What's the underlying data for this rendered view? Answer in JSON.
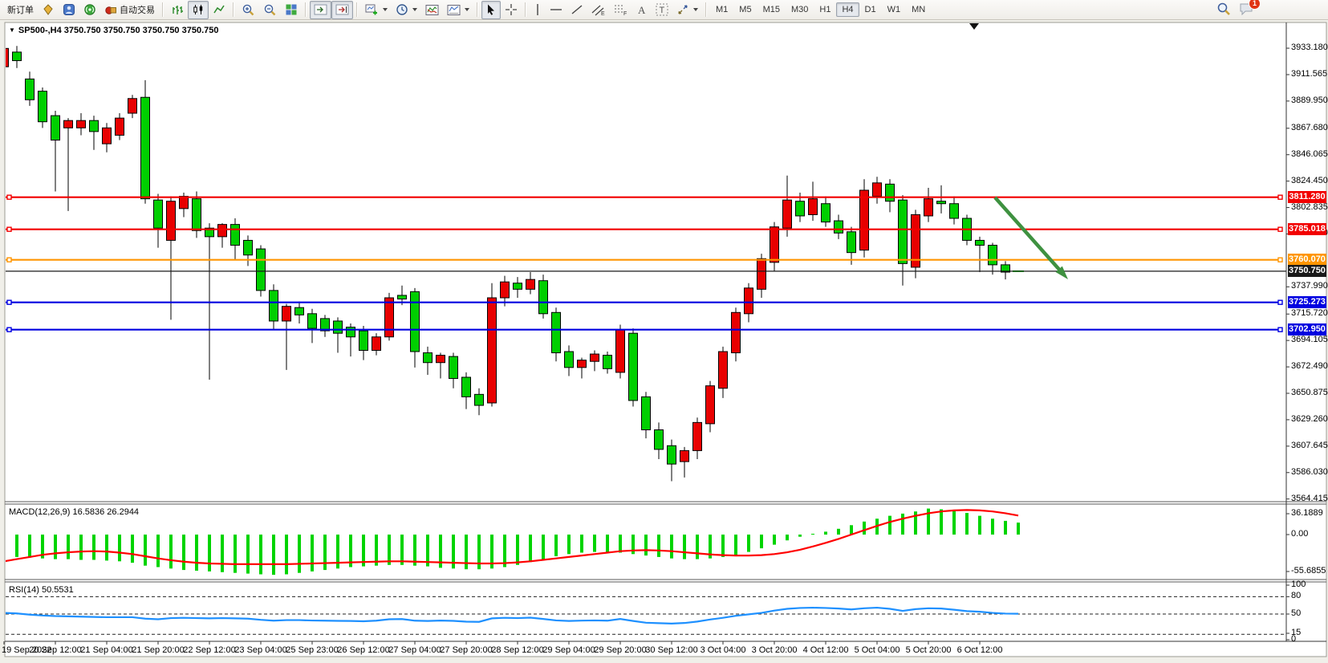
{
  "toolbar": {
    "new_order_label": "新订单",
    "auto_trading_label": "自动交易",
    "timeframes": [
      "M1",
      "M5",
      "M15",
      "M30",
      "H1",
      "H4",
      "D1",
      "W1",
      "MN"
    ],
    "active_timeframe": "H4",
    "notification_count": "1"
  },
  "chart": {
    "symbol_period": "SP500-,H4",
    "ohlc_display": "3750.750 3750.750 3750.750 3750.750",
    "current_price": "3750.750",
    "price_axis_labels": [
      "3933.180",
      "3911.565",
      "3889.950",
      "3867.680",
      "3846.065",
      "3824.450",
      "3802.835",
      "3781.220",
      "3737.990",
      "3715.720",
      "3694.105",
      "3672.490",
      "3650.875",
      "3629.260",
      "3607.645",
      "3586.030",
      "3564.415"
    ],
    "hlines": [
      {
        "label": "3811.280",
        "price": 3811.28,
        "color": "#f20000",
        "role": "resistance-line"
      },
      {
        "label": "3785.018",
        "price": 3785.018,
        "color": "#f20000",
        "role": "resistance-line"
      },
      {
        "label": "3760.070",
        "price": 3760.07,
        "color": "#ff9500",
        "role": "pivot-line"
      },
      {
        "label": "3750.750",
        "price": 3750.75,
        "color": "#1a1a1a",
        "role": "current-price-line"
      },
      {
        "label": "3725.273",
        "price": 3725.273,
        "color": "#0000e0",
        "role": "support-line"
      },
      {
        "label": "3702.950",
        "price": 3702.95,
        "color": "#0000e0",
        "role": "support-line"
      }
    ],
    "time_axis_labels": [
      "19 Sep 2022",
      "20 Sep 12:00",
      "21 Sep 04:00",
      "21 Sep 20:00",
      "22 Sep 12:00",
      "23 Sep 04:00",
      "25 Sep 23:00",
      "26 Sep 12:00",
      "27 Sep 04:00",
      "27 Sep 20:00",
      "28 Sep 12:00",
      "29 Sep 04:00",
      "29 Sep 20:00",
      "30 Sep 12:00",
      "3 Oct 04:00",
      "3 Oct 20:00",
      "4 Oct 12:00",
      "5 Oct 04:00",
      "5 Oct 20:00",
      "6 Oct 12:00"
    ],
    "chart_data": {
      "type": "candlestick",
      "up_color": "#e80000",
      "down_color": "#00cf00",
      "outline_color": "#000000",
      "candles": [
        [
          3918,
          3936,
          3914,
          3933
        ],
        [
          3930,
          3935,
          3917,
          3923
        ],
        [
          3908,
          3914,
          3886,
          3891
        ],
        [
          3898,
          3901,
          3868,
          3873
        ],
        [
          3878,
          3882,
          3816,
          3858
        ],
        [
          3868,
          3876,
          3800,
          3874
        ],
        [
          3868,
          3880,
          3862,
          3874
        ],
        [
          3874,
          3878,
          3850,
          3865
        ],
        [
          3855,
          3872,
          3848,
          3868
        ],
        [
          3862,
          3880,
          3858,
          3876
        ],
        [
          3880,
          3895,
          3876,
          3892
        ],
        [
          3893,
          3907,
          3806,
          3810
        ],
        [
          3809,
          3814,
          3770,
          3786
        ],
        [
          3776,
          3812,
          3711,
          3808
        ],
        [
          3802,
          3815,
          3795,
          3812
        ],
        [
          3810,
          3816,
          3778,
          3784
        ],
        [
          3786,
          3790,
          3662,
          3779
        ],
        [
          3779,
          3790,
          3770,
          3789
        ],
        [
          3789,
          3794,
          3760,
          3772
        ],
        [
          3776,
          3780,
          3755,
          3764
        ],
        [
          3769,
          3772,
          3730,
          3735
        ],
        [
          3735,
          3740,
          3703,
          3710
        ],
        [
          3710,
          3724,
          3670,
          3722
        ],
        [
          3721,
          3726,
          3708,
          3715
        ],
        [
          3716,
          3720,
          3692,
          3704
        ],
        [
          3712,
          3715,
          3697,
          3702
        ],
        [
          3710,
          3713,
          3684,
          3700
        ],
        [
          3705,
          3708,
          3681,
          3697
        ],
        [
          3702,
          3706,
          3678,
          3686
        ],
        [
          3686,
          3700,
          3682,
          3697
        ],
        [
          3697,
          3733,
          3694,
          3729
        ],
        [
          3731,
          3739,
          3723,
          3728
        ],
        [
          3734,
          3737,
          3672,
          3685
        ],
        [
          3684,
          3689,
          3666,
          3676
        ],
        [
          3676,
          3684,
          3663,
          3682
        ],
        [
          3681,
          3684,
          3655,
          3663
        ],
        [
          3664,
          3668,
          3638,
          3648
        ],
        [
          3650,
          3655,
          3633,
          3641
        ],
        [
          3643,
          3741,
          3640,
          3729
        ],
        [
          3729,
          3747,
          3722,
          3742
        ],
        [
          3741,
          3746,
          3729,
          3736
        ],
        [
          3736,
          3750,
          3732,
          3744
        ],
        [
          3743,
          3748,
          3712,
          3716
        ],
        [
          3717,
          3721,
          3677,
          3684
        ],
        [
          3685,
          3690,
          3665,
          3672
        ],
        [
          3672,
          3680,
          3663,
          3678
        ],
        [
          3677,
          3686,
          3669,
          3683
        ],
        [
          3682,
          3685,
          3667,
          3671
        ],
        [
          3668,
          3707,
          3663,
          3703
        ],
        [
          3700,
          3704,
          3640,
          3645
        ],
        [
          3648,
          3652,
          3614,
          3621
        ],
        [
          3621,
          3627,
          3597,
          3605
        ],
        [
          3608,
          3613,
          3579,
          3593
        ],
        [
          3595,
          3607,
          3582,
          3604
        ],
        [
          3604,
          3631,
          3597,
          3627
        ],
        [
          3626,
          3661,
          3619,
          3657
        ],
        [
          3655,
          3689,
          3647,
          3685
        ],
        [
          3684,
          3721,
          3677,
          3717
        ],
        [
          3716,
          3741,
          3709,
          3737
        ],
        [
          3736,
          3765,
          3729,
          3761
        ],
        [
          3758,
          3791,
          3751,
          3787
        ],
        [
          3786,
          3829,
          3779,
          3809
        ],
        [
          3808,
          3815,
          3791,
          3796
        ],
        [
          3797,
          3824,
          3792,
          3810
        ],
        [
          3806,
          3812,
          3787,
          3791
        ],
        [
          3792,
          3797,
          3777,
          3782
        ],
        [
          3783,
          3787,
          3756,
          3766
        ],
        [
          3768,
          3826,
          3762,
          3817
        ],
        [
          3812,
          3828,
          3806,
          3823
        ],
        [
          3822,
          3826,
          3799,
          3808
        ],
        [
          3809,
          3813,
          3739,
          3757
        ],
        [
          3754,
          3801,
          3745,
          3797
        ],
        [
          3796,
          3819,
          3791,
          3810
        ],
        [
          3808,
          3821,
          3798,
          3806
        ],
        [
          3806,
          3812,
          3789,
          3794
        ],
        [
          3794,
          3797,
          3772,
          3776
        ],
        [
          3776,
          3779,
          3750,
          3772
        ],
        [
          3772,
          3774,
          3748,
          3756
        ],
        [
          3756,
          3759,
          3744,
          3750
        ],
        [
          3750.75,
          3750.75,
          3750.75,
          3750.75
        ]
      ]
    }
  },
  "macd": {
    "label": "MACD(12,26,9) 16.5836 26.2944",
    "scale_labels": [
      "36.1889",
      "0.00",
      "-55.6855"
    ],
    "hist_color": "#00d400",
    "signal_color": "#ff0000",
    "histogram": [
      -30,
      -31,
      -32,
      -33,
      -34,
      -34,
      -35,
      -35,
      -36,
      -37,
      -39,
      -43,
      -45,
      -47,
      -49,
      -50,
      -51,
      -52,
      -53,
      -54,
      -55,
      -55.7,
      -55,
      -53,
      -51,
      -49,
      -47,
      -45,
      -44,
      -43,
      -42,
      -42,
      -43,
      -44,
      -46,
      -47,
      -48,
      -48,
      -47,
      -45,
      -42,
      -38,
      -34,
      -30,
      -27,
      -25,
      -24,
      -24,
      -25,
      -27,
      -29,
      -31,
      -33,
      -34,
      -34,
      -33,
      -31,
      -28,
      -24,
      -19,
      -14,
      -8,
      -3,
      1,
      4,
      8,
      13,
      18,
      22,
      26,
      29,
      32,
      36,
      35,
      33,
      30,
      26,
      22,
      19,
      16.58
    ],
    "signal": [
      -37,
      -34,
      -31,
      -28,
      -26,
      -24.5,
      -23.5,
      -23,
      -23.5,
      -25,
      -27,
      -30,
      -33,
      -35.5,
      -37.5,
      -39,
      -40,
      -40.5,
      -41,
      -41,
      -41,
      -41,
      -41,
      -40.5,
      -40,
      -39.5,
      -39,
      -38.5,
      -38,
      -37.5,
      -37,
      -37,
      -37.5,
      -38,
      -38.5,
      -39,
      -39.5,
      -40,
      -40,
      -39.5,
      -38.5,
      -37,
      -35,
      -33,
      -31,
      -29,
      -27,
      -25,
      -23,
      -22,
      -21.5,
      -22,
      -23,
      -24.5,
      -26,
      -27.5,
      -28.5,
      -29,
      -29,
      -28.5,
      -27,
      -24.5,
      -21,
      -16.5,
      -11.5,
      -6,
      0,
      6,
      12,
      17.5,
      22,
      26,
      29.5,
      32,
      33.5,
      34,
      33.5,
      32,
      29.5,
      26.29
    ]
  },
  "rsi": {
    "label": "RSI(14) 50.5531",
    "scale_labels": [
      "100",
      "80",
      "50",
      "15",
      "0"
    ],
    "levels": [
      80,
      50,
      15
    ],
    "line_color": "#1e90ff",
    "values": [
      52,
      51,
      49,
      47.5,
      46.5,
      46,
      45.5,
      45,
      44.5,
      44.5,
      44.5,
      42,
      41,
      43,
      43.5,
      43,
      42.5,
      43,
      42.5,
      42,
      40,
      38.5,
      39.5,
      39.5,
      38.8,
      38.5,
      38.2,
      38,
      37.5,
      38.5,
      41,
      41.3,
      38.5,
      38,
      38.7,
      38.2,
      36.8,
      36.5,
      42.5,
      43.5,
      43,
      43.7,
      41.5,
      39,
      38,
      38.6,
      39,
      38.5,
      41.5,
      38,
      35,
      34.2,
      33.5,
      34.5,
      37,
      40.5,
      43.5,
      47,
      49.5,
      52,
      56,
      59,
      60.5,
      61,
      60.5,
      59.5,
      58,
      60,
      61,
      59,
      55.5,
      58.5,
      60,
      59.5,
      57.5,
      55,
      54,
      52,
      50.8,
      50.55
    ]
  },
  "annotations": {
    "trend_arrow": {
      "color": "#3e9140",
      "direction": "down-right"
    }
  }
}
